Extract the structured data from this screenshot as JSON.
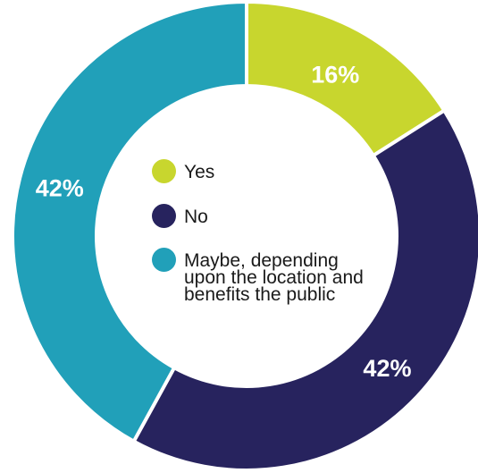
{
  "chart_data": {
    "type": "pie",
    "donut": true,
    "title": "",
    "categories": [
      "Yes",
      "No",
      "Maybe, depending upon the location and benefits the public"
    ],
    "values": [
      16,
      42,
      42
    ],
    "value_labels": [
      "16%",
      "42%",
      "42%"
    ],
    "colors": [
      "#c8d62e",
      "#27235e",
      "#21a0b9"
    ],
    "legend_position": "center"
  }
}
